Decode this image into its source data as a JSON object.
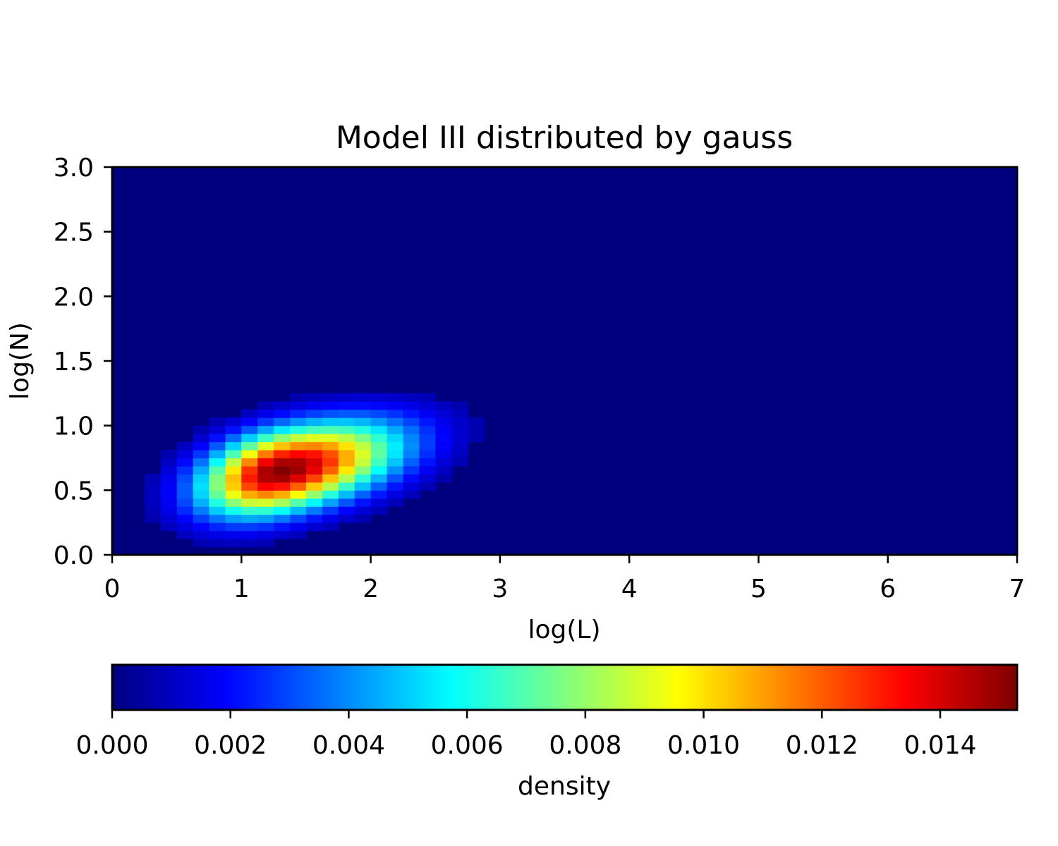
{
  "chart_data": {
    "type": "heatmap",
    "title": "Model III distributed by gauss",
    "xlabel": "log(L)",
    "ylabel": "log(N)",
    "xlim": [
      0,
      7
    ],
    "ylim": [
      0,
      3
    ],
    "x_ticks": [
      "0",
      "1",
      "2",
      "3",
      "4",
      "5",
      "6",
      "7"
    ],
    "y_ticks": [
      "0.0",
      "0.5",
      "1.0",
      "1.5",
      "2.0",
      "2.5",
      "3.0"
    ],
    "colormap": "jet",
    "grid": false,
    "cell_width": 0.125,
    "cell_height": 0.0625,
    "peak_density": 0.0153,
    "peak_location": {
      "x": 1.3,
      "y": 0.65
    },
    "colorbar": {
      "label": "density",
      "range": [
        0,
        0.0153
      ],
      "ticks": [
        "0.000",
        "0.002",
        "0.004",
        "0.006",
        "0.008",
        "0.010",
        "0.012",
        "0.014"
      ],
      "orientation": "horizontal",
      "placement": "bottom"
    },
    "background_density": 0,
    "colors": {
      "background": "#00007f",
      "peak": "#7f0000"
    }
  }
}
